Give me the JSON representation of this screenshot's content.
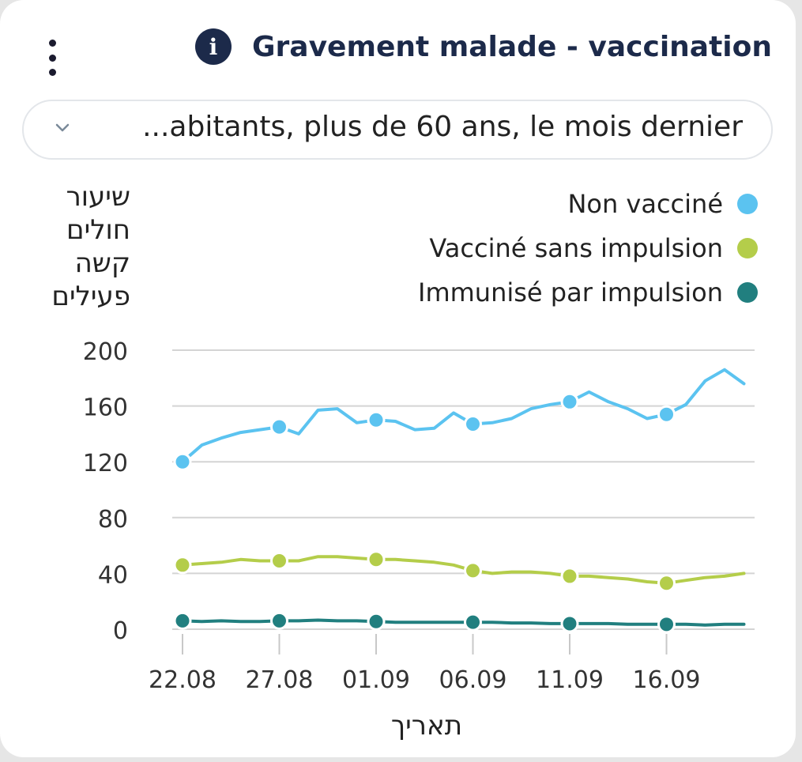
{
  "header": {
    "menu_icon": "kebab-menu-icon",
    "info_icon": "info-icon",
    "info_glyph": "i",
    "title": "Gravement malade - vaccination"
  },
  "filter": {
    "icon": "chevron-down-icon",
    "selected": "...abitants, plus de 60 ans, le mois dernier"
  },
  "chart_data": {
    "type": "line",
    "ylabel": "שיעור חולים קשה פעילים",
    "xlabel": "תאריך",
    "ylim": [
      0,
      200
    ],
    "yticks": [
      "0",
      "40",
      "80",
      "120",
      "160",
      "200"
    ],
    "grid": true,
    "legend_position": "top-right",
    "x": [
      "22.08",
      "23.08",
      "24.08",
      "25.08",
      "26.08",
      "27.08",
      "28.08",
      "29.08",
      "30.08",
      "31.08",
      "01.09",
      "02.09",
      "03.09",
      "04.09",
      "05.09",
      "06.09",
      "07.09",
      "08.09",
      "09.09",
      "10.09",
      "11.09",
      "12.09",
      "13.09",
      "14.09",
      "15.09",
      "16.09",
      "17.09",
      "18.09",
      "19.09",
      "20.09"
    ],
    "xticks": [
      "22.08",
      "27.08",
      "01.09",
      "06.09",
      "11.09",
      "16.09"
    ],
    "series": [
      {
        "name": "Non vacciné",
        "color": "#5bc3f0",
        "values": [
          120,
          132,
          137,
          141,
          143,
          145,
          140,
          157,
          158,
          148,
          150,
          149,
          143,
          144,
          155,
          147,
          148,
          151,
          158,
          161,
          163,
          170,
          163,
          158,
          151,
          154,
          161,
          178,
          186,
          176
        ]
      },
      {
        "name": "Vacciné sans impulsion",
        "color": "#b4cd4a",
        "values": [
          46,
          47,
          48,
          50,
          49,
          49,
          49,
          52,
          52,
          51,
          50,
          50,
          49,
          48,
          46,
          42,
          40,
          41,
          41,
          40,
          38,
          38,
          37,
          36,
          34,
          33,
          35,
          37,
          38,
          40
        ]
      },
      {
        "name": "Immunisé par impulsion",
        "color": "#217f7f",
        "values": [
          6,
          5.5,
          6,
          5.5,
          5.5,
          6,
          6,
          6.5,
          6,
          6,
          5.5,
          5,
          5,
          5,
          5,
          5,
          5,
          4.5,
          4.5,
          4,
          4,
          4,
          4,
          3.5,
          3.5,
          3.5,
          3.5,
          3,
          3.5,
          3.5
        ]
      }
    ],
    "markers_at": [
      "22.08",
      "27.08",
      "01.09",
      "06.09",
      "11.09",
      "16.09"
    ]
  }
}
